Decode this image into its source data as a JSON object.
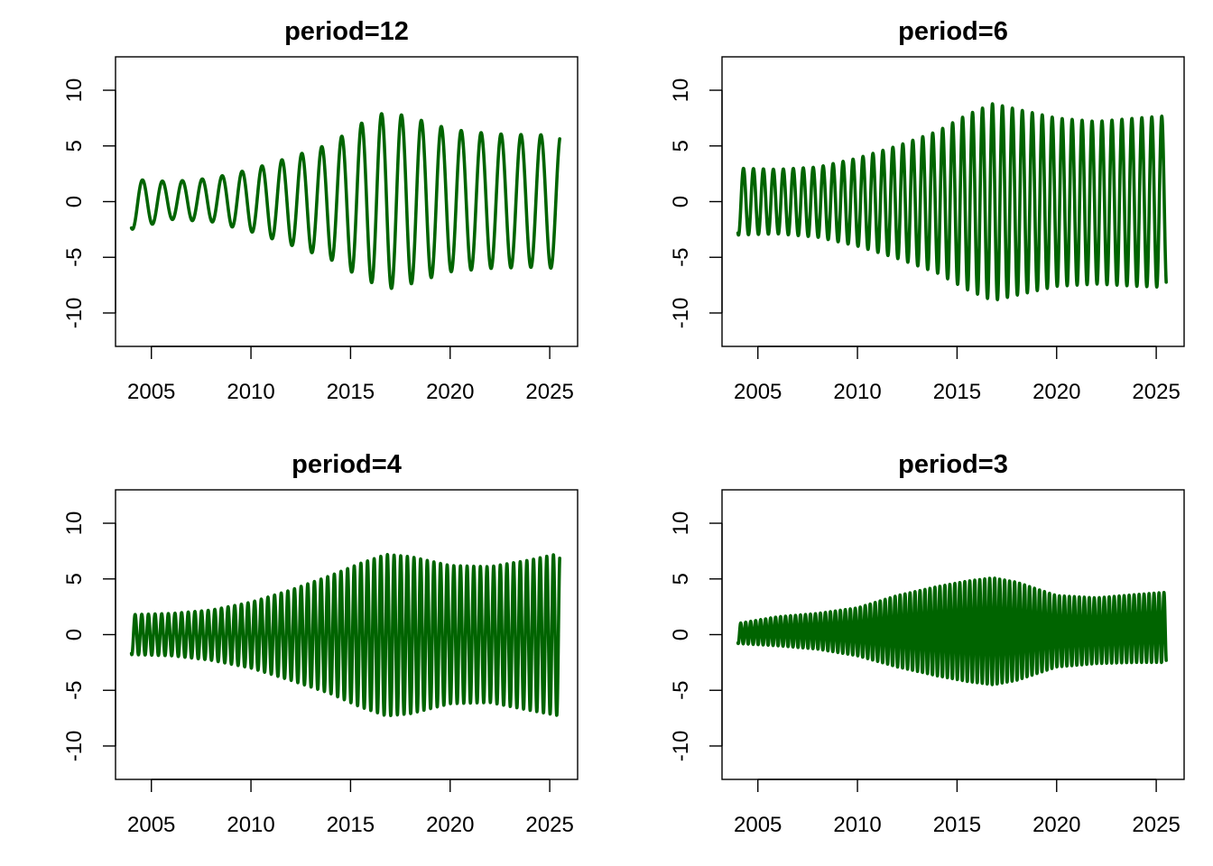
{
  "chart_data": [
    {
      "type": "line",
      "title": "period=12",
      "period": 12,
      "x_range": [
        2004.0,
        2025.5
      ],
      "xlim": [
        2003.2,
        2026.4
      ],
      "ylim": [
        -13,
        13
      ],
      "xticks": [
        2005,
        2010,
        2015,
        2020,
        2025
      ],
      "yticks": [
        -10,
        -5,
        0,
        5,
        10
      ],
      "xtick_labels": [
        "2005",
        "2010",
        "2015",
        "2020",
        "2025"
      ],
      "ytick_labels": [
        "-10",
        "-5",
        "0",
        "5",
        "10"
      ],
      "grid": false,
      "series_color": "#006400",
      "envelope": {
        "x": [
          2004.0,
          2006.0,
          2008.0,
          2010.0,
          2012.0,
          2014.0,
          2015.5,
          2016.8,
          2018.0,
          2020.0,
          2022.0,
          2024.0,
          2025.5
        ],
        "upper": [
          2.0,
          1.8,
          2.1,
          2.9,
          4.0,
          5.2,
          7.0,
          8.1,
          7.6,
          6.5,
          6.1,
          6.0,
          6.0
        ],
        "lower": [
          -2.5,
          -1.6,
          -1.8,
          -2.7,
          -3.9,
          -5.2,
          -6.8,
          -7.9,
          -7.4,
          -6.3,
          -6.0,
          -5.9,
          -6.0
        ]
      }
    },
    {
      "type": "line",
      "title": "period=6",
      "period": 6,
      "x_range": [
        2004.0,
        2025.5
      ],
      "xlim": [
        2003.2,
        2026.4
      ],
      "ylim": [
        -13,
        13
      ],
      "xticks": [
        2005,
        2010,
        2015,
        2020,
        2025
      ],
      "yticks": [
        -10,
        -5,
        0,
        5,
        10
      ],
      "xtick_labels": [
        "2005",
        "2010",
        "2015",
        "2020",
        "2025"
      ],
      "ytick_labels": [
        "-10",
        "-5",
        "0",
        "5",
        "10"
      ],
      "grid": false,
      "series_color": "#006400",
      "envelope": {
        "x": [
          2004.0,
          2006.0,
          2008.0,
          2010.0,
          2012.0,
          2014.0,
          2015.5,
          2016.8,
          2018.0,
          2020.0,
          2022.0,
          2024.0,
          2025.5
        ],
        "upper": [
          3.0,
          2.9,
          3.1,
          3.9,
          5.0,
          6.3,
          7.8,
          8.8,
          8.3,
          7.5,
          7.2,
          7.5,
          7.7
        ],
        "lower": [
          -3.0,
          -2.9,
          -3.2,
          -4.0,
          -5.1,
          -6.4,
          -7.9,
          -8.9,
          -8.4,
          -7.6,
          -7.4,
          -7.6,
          -7.7
        ]
      }
    },
    {
      "type": "line",
      "title": "period=4",
      "period": 4,
      "x_range": [
        2004.0,
        2025.5
      ],
      "xlim": [
        2003.2,
        2026.4
      ],
      "ylim": [
        -13,
        13
      ],
      "xticks": [
        2005,
        2010,
        2015,
        2020,
        2025
      ],
      "yticks": [
        -10,
        -5,
        0,
        5,
        10
      ],
      "xtick_labels": [
        "2005",
        "2010",
        "2015",
        "2020",
        "2025"
      ],
      "ytick_labels": [
        "-10",
        "-5",
        "0",
        "5",
        "10"
      ],
      "grid": false,
      "series_color": "#006400",
      "envelope": {
        "x": [
          2004.0,
          2006.0,
          2008.0,
          2010.0,
          2012.0,
          2014.0,
          2015.5,
          2016.8,
          2018.0,
          2020.0,
          2022.0,
          2024.0,
          2025.5
        ],
        "upper": [
          1.8,
          1.9,
          2.2,
          2.9,
          4.0,
          5.3,
          6.4,
          7.2,
          7.0,
          6.2,
          6.1,
          6.7,
          7.3
        ],
        "lower": [
          -1.8,
          -1.9,
          -2.3,
          -3.0,
          -4.1,
          -5.3,
          -6.5,
          -7.3,
          -7.1,
          -6.2,
          -6.1,
          -6.8,
          -7.3
        ]
      }
    },
    {
      "type": "line",
      "title": "period=3",
      "period": 3,
      "x_range": [
        2004.0,
        2025.5
      ],
      "xlim": [
        2003.2,
        2026.4
      ],
      "ylim": [
        -13,
        13
      ],
      "xticks": [
        2005,
        2010,
        2015,
        2020,
        2025
      ],
      "yticks": [
        -10,
        -5,
        0,
        5,
        10
      ],
      "xtick_labels": [
        "2005",
        "2010",
        "2015",
        "2020",
        "2025"
      ],
      "ytick_labels": [
        "-10",
        "-5",
        "0",
        "5",
        "10"
      ],
      "grid": false,
      "series_color": "#006400",
      "envelope": {
        "x": [
          2004.0,
          2006.0,
          2008.0,
          2010.0,
          2012.0,
          2014.0,
          2015.5,
          2016.8,
          2018.0,
          2020.0,
          2022.0,
          2024.0,
          2025.5
        ],
        "upper": [
          1.0,
          1.6,
          1.9,
          2.4,
          3.5,
          4.3,
          4.8,
          5.1,
          4.7,
          3.5,
          3.3,
          3.6,
          3.8
        ],
        "lower": [
          -0.8,
          -1.0,
          -1.3,
          -1.9,
          -2.9,
          -3.7,
          -4.2,
          -4.5,
          -4.1,
          -2.9,
          -2.6,
          -2.5,
          -2.5
        ]
      }
    }
  ]
}
